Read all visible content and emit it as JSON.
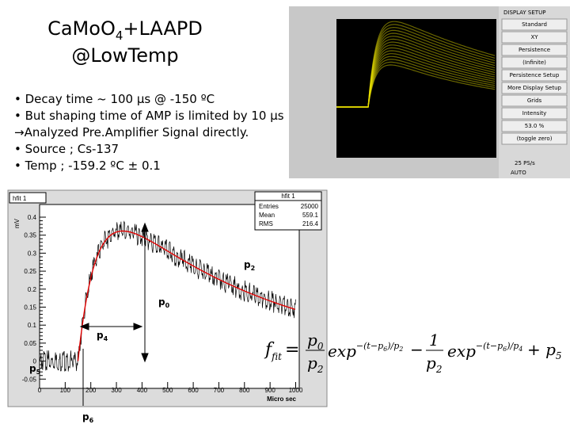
{
  "title": {
    "line1_before": "CaMoO",
    "line1_sub": "4",
    "line1_after": "+LAAPD",
    "line2": "@LowTemp"
  },
  "bullets": [
    "• Decay time ~ 100 μs @ -150 ºC",
    "• But shaping time of AMP is limited by 10 μs",
    "→Analyzed Pre.Amplifier Signal directly.",
    "• Source ; Cs-137",
    "• Temp ; -159.2 ºC ± 0.1"
  ],
  "scope": {
    "menu_title": "DISPLAY SETUP",
    "buttons": [
      "Standard",
      "XY",
      "Persistence",
      "(Infinite)",
      "Persistence Setup",
      "More Display Setup",
      "Grids",
      "Intensity",
      "53.0 %",
      "(toggle zero)"
    ],
    "footer": [
      "25 PS/s",
      "AUTO"
    ]
  },
  "plot": {
    "name": "hfit 1",
    "stats_title": "hfit 1",
    "stats": [
      [
        "Entries",
        "25000"
      ],
      [
        "Mean",
        "559.1"
      ],
      [
        "RMS",
        "216.4"
      ]
    ],
    "ylabel": "mV",
    "xlabel": "Micro sec",
    "yticks": [
      0.4,
      0.35,
      0.3,
      0.25,
      0.2,
      0.15,
      0.1,
      0.05,
      0,
      -0.05
    ],
    "xticks": [
      0,
      100,
      200,
      300,
      400,
      500,
      600,
      700,
      800,
      900,
      1000
    ],
    "annotations": [
      {
        "base": "p",
        "sub": "2"
      },
      {
        "base": "p",
        "sub": "0"
      },
      {
        "base": "p",
        "sub": "4"
      },
      {
        "base": "p",
        "sub": "5"
      },
      {
        "base": "p",
        "sub": "6"
      }
    ]
  },
  "formula": {
    "f": "f",
    "fit": "fit",
    "eq": "=",
    "p0": "p",
    "p0s": "0",
    "p2a": "p",
    "p2as": "2",
    "exp1": "exp",
    "e1": "−(t−p",
    "e1s": "6",
    "e1b": ")/p",
    "e1c": "2",
    "minus": "−",
    "one": "1",
    "p2b": "p",
    "p2bs": "2",
    "exp2": "exp",
    "e2": "−(t−p",
    "e2s": "6",
    "e2b": ")/p",
    "e2c": "4",
    "plus": "+ p",
    "p5s": "5"
  }
}
